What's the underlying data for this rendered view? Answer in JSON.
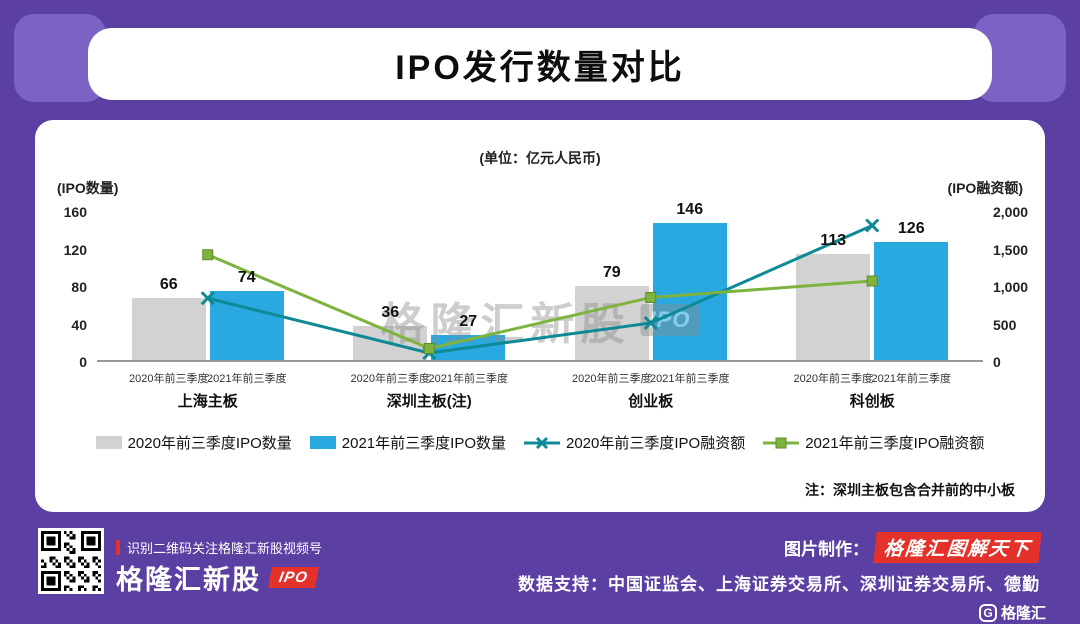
{
  "page": {
    "title": "IPO发行数量对比"
  },
  "colors": {
    "background": "#5B3FA3",
    "panel": "#FFFFFF",
    "accent_red": "#E43129",
    "bar_2020": "#D2D2D2",
    "bar_2021": "#29A9E0",
    "line_2020": "#0D8A96",
    "line_2021": "#7EB33F"
  },
  "watermark": {
    "text": "格隆汇新股",
    "badge": "IPO"
  },
  "chart_data": {
    "type": "bar+line",
    "title": "IPO发行数量对比",
    "unit": "(单位：亿元人民币)",
    "categories": [
      "上海主板",
      "深圳主板(注)",
      "创业板",
      "科创板"
    ],
    "x_tick_labels": [
      "2020年前三季度",
      "2021年前三季度"
    ],
    "bar_series": [
      {
        "name": "2020年前三季度IPO数量",
        "axis": "left",
        "color": "#D2D2D2",
        "values": [
          66,
          36,
          79,
          113
        ]
      },
      {
        "name": "2021年前三季度IPO数量",
        "axis": "left",
        "color": "#29A9E0",
        "values": [
          74,
          27,
          146,
          126
        ]
      }
    ],
    "line_series": [
      {
        "name": "2020年前三季度IPO融资额",
        "axis": "right",
        "color": "#0D8A96",
        "marker": "x",
        "values": [
          850,
          120,
          520,
          1820
        ]
      },
      {
        "name": "2021年前三季度IPO融资额",
        "axis": "right",
        "color": "#7EB33F",
        "marker": "square",
        "values": [
          1430,
          180,
          860,
          1080
        ]
      }
    ],
    "left_axis": {
      "label": "(IPO数量)",
      "ticks": [
        0,
        40,
        80,
        120,
        160
      ],
      "max": 160
    },
    "right_axis": {
      "label": "(IPO融资额)",
      "ticks": [
        "0",
        "500",
        "1,000",
        "1,500",
        "2,000"
      ],
      "max": 2000
    },
    "legend_position": "bottom",
    "grid": false,
    "note": "注：深圳主板包含合并前的中小板"
  },
  "footer": {
    "qr_caption": "识别二维码关注格隆汇新股视频号",
    "brand": "格隆汇新股",
    "brand_badge": "IPO",
    "credit_label": "图片制作：",
    "credit_brand": "格隆汇图解天下",
    "data_support": "数据支持：中国证监会、上海证券交易所、深圳证券交易所、德勤",
    "logo_letter": "G",
    "logo_text": "格隆汇"
  }
}
